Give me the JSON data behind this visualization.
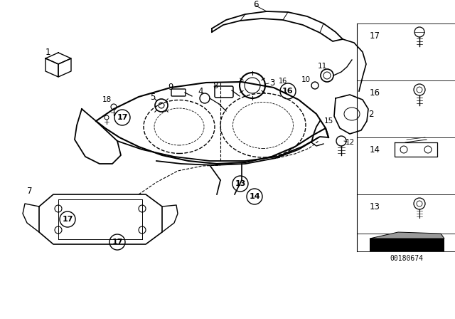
{
  "bg_color": "#ffffff",
  "line_color": "#000000",
  "diagram_code": "00180674",
  "figsize": [
    6.4,
    4.48
  ],
  "dpi": 100
}
